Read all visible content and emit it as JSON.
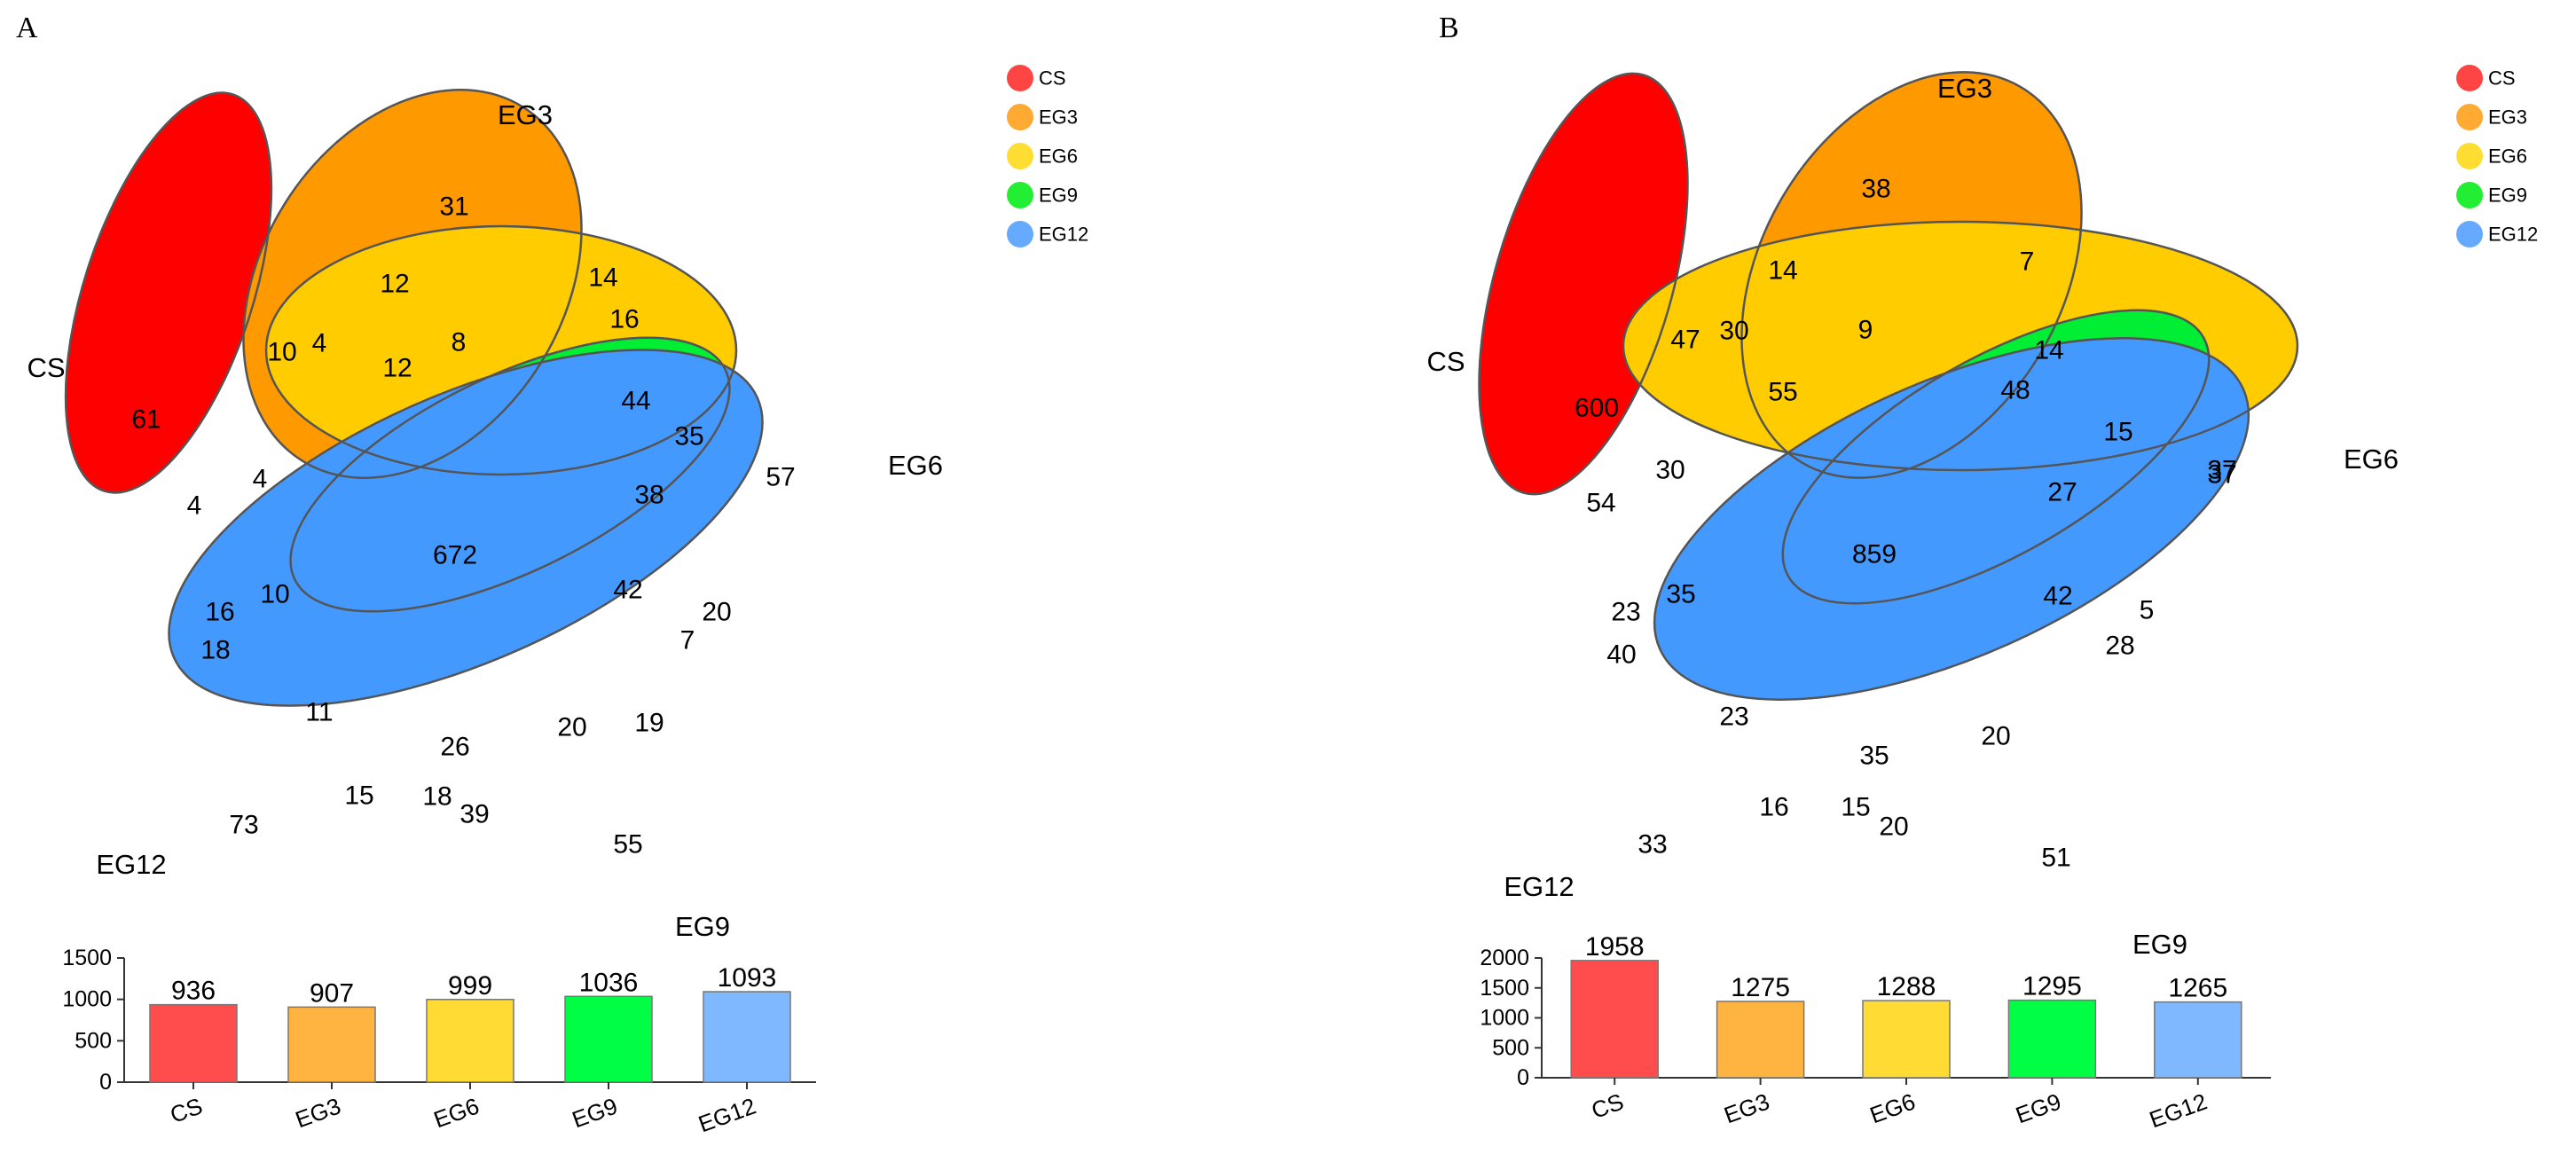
{
  "chart_data": [
    {
      "panel": "A",
      "type": "venn",
      "sets": [
        "CS",
        "EG3",
        "EG6",
        "EG9",
        "EG12"
      ],
      "colors": {
        "CS": "#ff0000",
        "EG3": "#ff9900",
        "EG6": "#ffcc00",
        "EG9": "#00ee33",
        "EG12": "#4499ff"
      },
      "legend": [
        "CS",
        "EG3",
        "EG6",
        "EG9",
        "EG12"
      ],
      "legend_position": "top-right",
      "region_counts": [
        "61",
        "31",
        "57",
        "55",
        "73",
        "10",
        "4",
        "12",
        "4",
        "14",
        "16",
        "8",
        "12",
        "44",
        "35",
        "38",
        "672",
        "42",
        "20",
        "7",
        "19",
        "4",
        "10",
        "16",
        "18",
        "11",
        "26",
        "20",
        "15",
        "18",
        "39"
      ],
      "bar": {
        "type": "bar",
        "categories": [
          "CS",
          "EG3",
          "EG6",
          "EG9",
          "EG12"
        ],
        "values": [
          936,
          907,
          999,
          1036,
          1093
        ],
        "value_labels": [
          "936",
          "907",
          "999",
          "1036",
          "1093"
        ],
        "yticks": [
          "0",
          "500",
          "1000",
          "1500"
        ],
        "ylim": [
          0,
          1500
        ]
      }
    },
    {
      "panel": "B",
      "type": "venn",
      "sets": [
        "CS",
        "EG3",
        "EG6",
        "EG9",
        "EG12"
      ],
      "colors": {
        "CS": "#ff0000",
        "EG3": "#ff9900",
        "EG6": "#ffcc00",
        "EG9": "#00ee33",
        "EG12": "#4499ff"
      },
      "legend": [
        "CS",
        "EG3",
        "EG6",
        "EG9",
        "EG12"
      ],
      "legend_position": "top-right",
      "region_counts": [
        "600",
        "38",
        "37",
        "51",
        "33",
        "47",
        "30",
        "14",
        "9",
        "7",
        "14",
        "48",
        "15",
        "55",
        "30",
        "54",
        "27",
        "37",
        "859",
        "42",
        "5",
        "28",
        "23",
        "35",
        "40",
        "23",
        "35",
        "20",
        "16",
        "15",
        "20"
      ],
      "bar": {
        "type": "bar",
        "categories": [
          "CS",
          "EG3",
          "EG6",
          "EG9",
          "EG12"
        ],
        "values": [
          1958,
          1275,
          1288,
          1295,
          1265
        ],
        "value_labels": [
          "1958",
          "1275",
          "1288",
          "1295",
          "1265"
        ],
        "yticks": [
          "0",
          "500",
          "1000",
          "1500",
          "2000"
        ],
        "ylim": [
          0,
          2000
        ]
      }
    }
  ],
  "legend_colors": [
    "#ff4444",
    "#ffaa33",
    "#ffdd33",
    "#22ee33",
    "#66aaff"
  ],
  "bar_colors": [
    "#ff4d4d",
    "#ffb340",
    "#ffdb33",
    "#00ff44",
    "#80b8ff"
  ]
}
